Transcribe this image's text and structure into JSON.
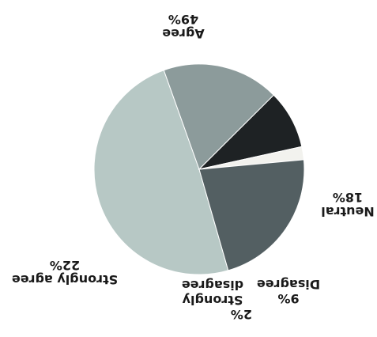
{
  "chart_data": {
    "type": "pie",
    "title": "",
    "orientation": "rotated-180",
    "slices": [
      {
        "label": "Agree",
        "value": 49,
        "value_label": "49%",
        "color": "#b7c8c5"
      },
      {
        "label": "Neutral",
        "value": 18,
        "value_label": "18%",
        "color": "#8c9b9b"
      },
      {
        "label": "Disagree",
        "value": 9,
        "value_label": "9%",
        "color": "#1e2224"
      },
      {
        "label": "Strongly disagree",
        "value": 2,
        "value_label": "2%",
        "color": "#f2f2ee"
      },
      {
        "label": "Strongly agree",
        "value": 22,
        "value_label": "22%",
        "color": "#535f62"
      }
    ]
  }
}
